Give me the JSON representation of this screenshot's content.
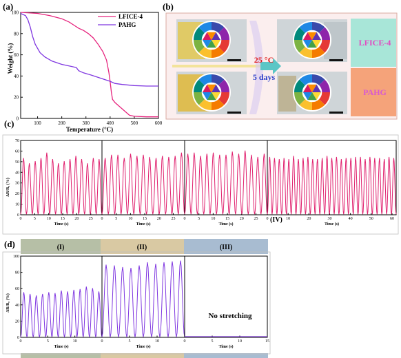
{
  "panels": {
    "a": {
      "label": "(a)",
      "chart_data": {
        "type": "line",
        "xlabel": "Temperature (°C)",
        "ylabel": "Weight (%)",
        "xlim": [
          30,
          600
        ],
        "ylim": [
          0,
          100
        ],
        "xticks": [
          100,
          200,
          300,
          400,
          500,
          600
        ],
        "yticks": [
          0,
          20,
          40,
          60,
          80,
          100
        ],
        "legend_position": "top-right",
        "series": [
          {
            "name": "LFICE-4",
            "color": "#e6237d",
            "points": [
              [
                30,
                100
              ],
              [
                100,
                99
              ],
              [
                150,
                97
              ],
              [
                200,
                94
              ],
              [
                230,
                91
              ],
              [
                250,
                88
              ],
              [
                270,
                85
              ],
              [
                290,
                83
              ],
              [
                310,
                80
              ],
              [
                330,
                76
              ],
              [
                350,
                70
              ],
              [
                370,
                63
              ],
              [
                385,
                55
              ],
              [
                395,
                43
              ],
              [
                400,
                35
              ],
              [
                405,
                25
              ],
              [
                410,
                18
              ],
              [
                420,
                15
              ],
              [
                440,
                11
              ],
              [
                460,
                7
              ],
              [
                480,
                3
              ],
              [
                500,
                2
              ],
              [
                550,
                1.5
              ],
              [
                600,
                1.5
              ]
            ]
          },
          {
            "name": "PAHG",
            "color": "#7f36e0",
            "points": [
              [
                30,
                99
              ],
              [
                50,
                97
              ],
              [
                60,
                93
              ],
              [
                70,
                86
              ],
              [
                80,
                77
              ],
              [
                90,
                70
              ],
              [
                110,
                62
              ],
              [
                130,
                58
              ],
              [
                160,
                54
              ],
              [
                200,
                51
              ],
              [
                240,
                49
              ],
              [
                260,
                48
              ],
              [
                270,
                45
              ],
              [
                290,
                43
              ],
              [
                320,
                41
              ],
              [
                360,
                38
              ],
              [
                400,
                35
              ],
              [
                420,
                33
              ],
              [
                450,
                32
              ],
              [
                500,
                31
              ],
              [
                550,
                30.5
              ],
              [
                600,
                30.5
              ]
            ]
          }
        ]
      }
    },
    "b": {
      "label": "(b)",
      "arrow_top": "25 °C",
      "arrow_bottom": "5 days",
      "label_top": "LFICE-4",
      "label_bottom": "PAHG",
      "colors": {
        "top_band": "#a8e6d8",
        "bottom_band": "#f5a37a",
        "border": "#d9aaa0"
      }
    },
    "c": {
      "label": "(c)",
      "ylabel": "ΔR/R₀ (%)",
      "xlabel": "Time (s)",
      "color": "#e0206e",
      "marker_label": "(IV)",
      "ylim": [
        0,
        70
      ],
      "yticks": [
        0,
        10,
        20,
        30,
        40,
        50,
        60,
        70
      ],
      "chart_data": {
        "type": "line",
        "segments": [
          {
            "xmax": 29,
            "xticks": [
              0,
              5,
              10,
              15,
              20,
              25
            ],
            "n_cycles": 14,
            "peaks": [
              53,
              48,
              50,
              53,
              58,
              52,
              48,
              50,
              52,
              55,
              52,
              48,
              53,
              52
            ]
          },
          {
            "xmax": 29,
            "xticks": [
              0,
              5,
              10,
              15,
              20,
              25
            ],
            "n_cycles": 13,
            "peaks": [
              53,
              56,
              56,
              53,
              57,
              55,
              56,
              54,
              53,
              55,
              54,
              55,
              58
            ]
          },
          {
            "xmax": 29,
            "xticks": [
              0,
              5,
              10,
              15,
              20,
              25
            ],
            "n_cycles": 13,
            "peaks": [
              57,
              58,
              55,
              57,
              58,
              56,
              56,
              59,
              57,
              60,
              56,
              54,
              57
            ]
          },
          {
            "xmax": 62,
            "xticks": [
              0,
              10,
              20,
              30,
              40,
              50,
              60
            ],
            "n_cycles": 27,
            "peaks": [
              54,
              53,
              52,
              53,
              52,
              55,
              52,
              53,
              54,
              52,
              52,
              53,
              55,
              53,
              54,
              52,
              53,
              53,
              54,
              54,
              52,
              54,
              53,
              53,
              52,
              54,
              53
            ]
          }
        ]
      }
    },
    "d": {
      "label": "(d)",
      "ylabel": "ΔR/R₀ (%)",
      "xlabel": "Time (s)",
      "color": "#7f36e0",
      "headers": [
        "(I)",
        "(II)",
        "(III)"
      ],
      "header_colors": [
        "#b6bfa6",
        "#d9c9a3",
        "#a8bcd1"
      ],
      "no_stretch_text": "No stretching",
      "ylim": [
        0,
        100
      ],
      "yticks": [
        0,
        20,
        40,
        60,
        80,
        100
      ],
      "chart_data": {
        "type": "line",
        "segments": [
          {
            "xmax": 15,
            "xticks": [
              0,
              5,
              10
            ],
            "n_cycles": 13,
            "peaks": [
              55,
              53,
              51,
              53,
              55,
              54,
              57,
              56,
              58,
              59,
              62,
              60,
              56
            ]
          },
          {
            "xmax": 15,
            "xticks": [
              0,
              5,
              10
            ],
            "n_cycles": 10,
            "peaks": [
              89,
              88,
              86,
              85,
              88,
              92,
              90,
              92,
              93,
              94
            ]
          },
          {
            "xmax": 15,
            "xticks": [
              0,
              5,
              10,
              15
            ],
            "n_cycles": 0,
            "flat_value": 1,
            "peaks": []
          }
        ]
      }
    }
  }
}
